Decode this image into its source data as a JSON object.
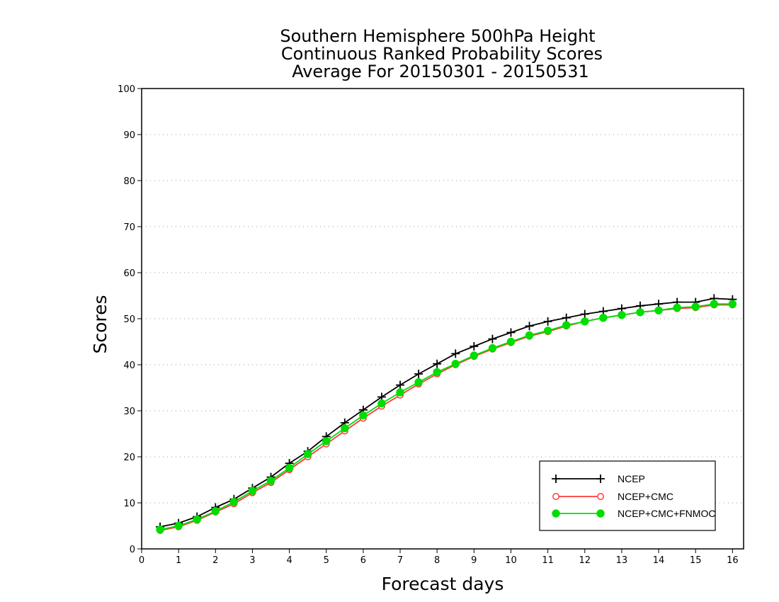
{
  "chart_data": {
    "type": "line",
    "title_lines": [
      "Southern Hemisphere 500hPa Height",
      "Continuous Ranked Probability Scores",
      "Average For 20150301 - 20150531"
    ],
    "xlabel": "Forecast days",
    "ylabel": "Scores",
    "xlim": [
      0,
      16.3
    ],
    "ylim": [
      0,
      100
    ],
    "x_ticks": [
      0,
      1,
      2,
      3,
      4,
      5,
      6,
      7,
      8,
      9,
      10,
      11,
      12,
      13,
      14,
      15,
      16
    ],
    "y_ticks": [
      0,
      10,
      20,
      30,
      40,
      50,
      60,
      70,
      80,
      90,
      100
    ],
    "grid": "horizontal dotted",
    "legend_position": "bottom-right",
    "x": [
      0.5,
      1.0,
      1.5,
      2.0,
      2.5,
      3.0,
      3.5,
      4.0,
      4.5,
      5.0,
      5.5,
      6.0,
      6.5,
      7.0,
      7.5,
      8.0,
      8.5,
      9.0,
      9.5,
      10.0,
      10.5,
      11.0,
      11.5,
      12.0,
      12.5,
      13.0,
      13.5,
      14.0,
      14.5,
      15.0,
      15.5,
      16.0
    ],
    "series": [
      {
        "name": "NCEP",
        "color": "#000000",
        "marker": "plus",
        "values": [
          4.8,
          5.6,
          7.0,
          9.0,
          10.8,
          13.2,
          15.6,
          18.6,
          21.2,
          24.4,
          27.4,
          30.2,
          33.0,
          35.6,
          38.0,
          40.2,
          42.4,
          44.0,
          45.6,
          47.0,
          48.4,
          49.4,
          50.2,
          51.0,
          51.6,
          52.2,
          52.8,
          53.2,
          53.6,
          53.6,
          54.4,
          54.2
        ]
      },
      {
        "name": "NCEP+CMC",
        "color": "#ff3b3b",
        "marker": "open-circle",
        "values": [
          4.0,
          4.8,
          6.2,
          8.0,
          9.8,
          12.2,
          14.4,
          17.2,
          20.0,
          22.8,
          25.6,
          28.4,
          31.0,
          33.4,
          35.8,
          38.0,
          40.0,
          41.8,
          43.4,
          44.8,
          46.2,
          47.2,
          48.4,
          49.4,
          50.2,
          50.8,
          51.4,
          51.8,
          52.2,
          52.4,
          53.0,
          53.0
        ]
      },
      {
        "name": "NCEP+CMC+FNMOC",
        "color": "#00dd00",
        "marker": "filled-circle",
        "values": [
          4.2,
          5.0,
          6.4,
          8.2,
          10.2,
          12.6,
          14.8,
          17.6,
          20.6,
          23.4,
          26.2,
          29.0,
          31.6,
          34.0,
          36.2,
          38.4,
          40.2,
          42.0,
          43.6,
          45.0,
          46.4,
          47.4,
          48.6,
          49.4,
          50.2,
          50.8,
          51.4,
          51.8,
          52.4,
          52.6,
          53.2,
          53.2
        ]
      }
    ]
  }
}
